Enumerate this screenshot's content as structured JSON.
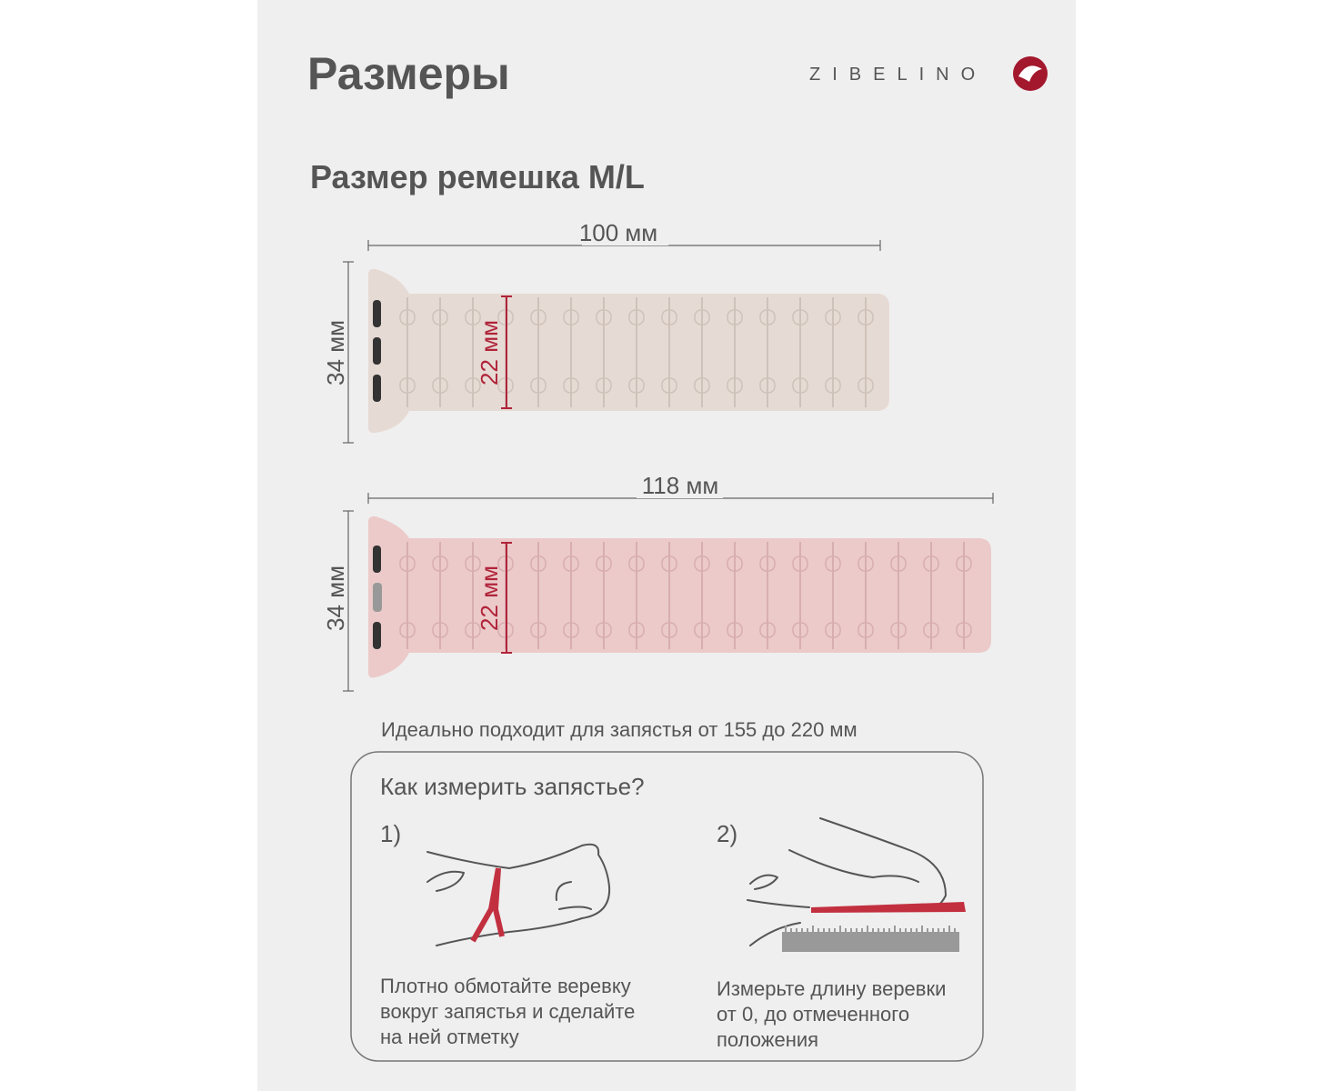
{
  "header": {
    "title": "Размеры",
    "brand": "ZIBELINO"
  },
  "section_title": "Размер ремешка M/L",
  "straps": [
    {
      "length_label": "100 мм",
      "width_label": "34 мм",
      "inner_label": "22 мм"
    },
    {
      "length_label": "118 мм",
      "width_label": "34 мм",
      "inner_label": "22 мм"
    }
  ],
  "fit_note": "Идеально подходит для запястья от 155 до 220 мм",
  "howto": {
    "title": "Как измерить запястье?",
    "steps": [
      {
        "number": "1)",
        "text_lines": [
          "Плотно обмотайте веревку",
          "вокруг запястья и сделайте",
          "на ней отметку"
        ]
      },
      {
        "number": "2)",
        "text_lines": [
          "Измерьте длину веревки",
          "от 0, до отмеченного",
          "положения"
        ]
      }
    ]
  }
}
